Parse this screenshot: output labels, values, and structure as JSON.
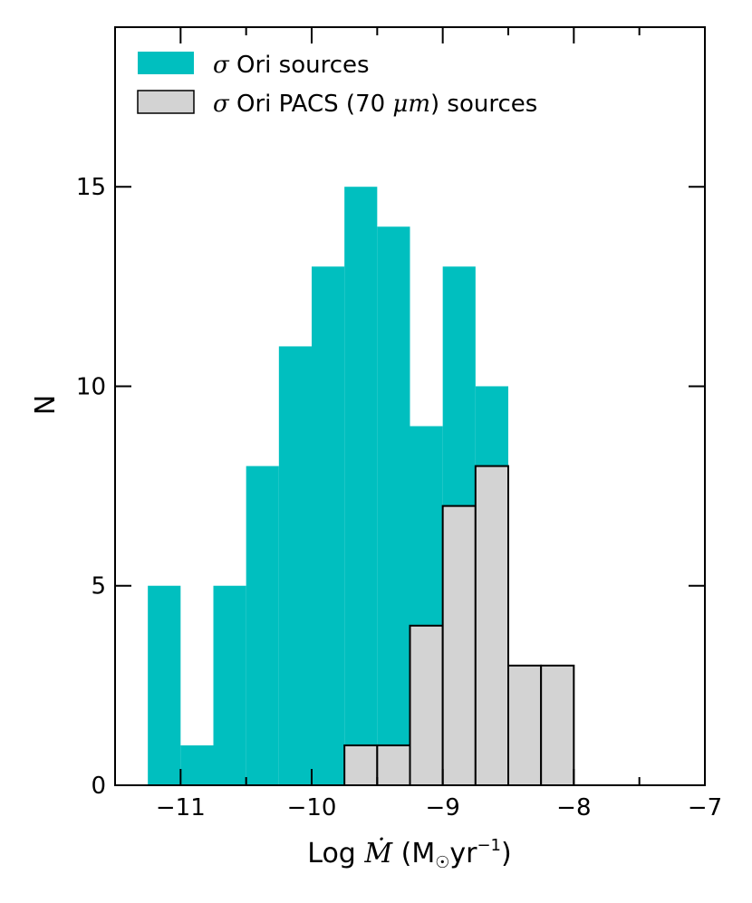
{
  "chart_data": {
    "type": "histogram",
    "xlabel": "Log Ṁ (M☉yr⁻¹)",
    "xlabel_parts": {
      "prefix": "Log ",
      "symbol": "Ṁ",
      "open": " (M",
      "sun": "☉",
      "yr": "yr",
      "exp": "−1",
      "close": ")"
    },
    "ylabel": "N",
    "xlim": [
      -11.5,
      -7
    ],
    "ylim": [
      0,
      19
    ],
    "xticks": [
      -11,
      -10,
      -9,
      -8,
      -7
    ],
    "xtick_labels": [
      "−11",
      "−10",
      "−9",
      "−8",
      "−7"
    ],
    "yticks": [
      0,
      5,
      10,
      15
    ],
    "ytick_labels": [
      "0",
      "5",
      "10",
      "15"
    ],
    "legend_position": "upper-left",
    "series": [
      {
        "name": "σ Ori sources",
        "name_parts": {
          "greek": "σ",
          "rest": " Ori sources"
        },
        "color": "#00bfbf",
        "edge": "none",
        "bin_edges": [
          -11.25,
          -11.0,
          -10.75,
          -10.5,
          -10.25,
          -10.0,
          -9.75,
          -9.5,
          -9.25,
          -9.0,
          -8.75,
          -8.5
        ],
        "counts": [
          5,
          1,
          5,
          8,
          11,
          13,
          15,
          14,
          9,
          13,
          10
        ]
      },
      {
        "name": "σ Ori PACS (70 μm) sources",
        "name_parts": {
          "greek": "σ",
          "mid": " Ori PACS (70 ",
          "mu": "μm",
          "end": ") sources"
        },
        "color": "#d3d3d3",
        "edge": "#000000",
        "bin_edges": [
          -9.75,
          -9.5,
          -9.25,
          -9.0,
          -8.75,
          -8.5,
          -8.25,
          -8.0
        ],
        "counts": [
          1,
          1,
          4,
          7,
          8,
          3,
          3
        ]
      }
    ]
  }
}
